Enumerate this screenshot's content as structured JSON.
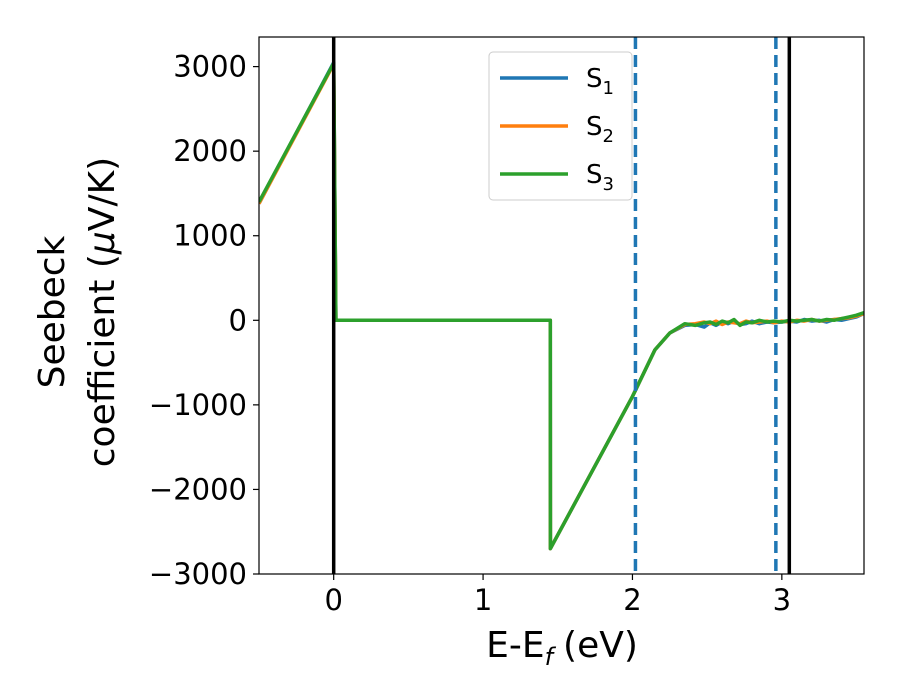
{
  "chart_data": {
    "type": "line",
    "xlabel": "E-E",
    "xlabel_sub": "f",
    "xlabel_unit": "(eV)",
    "ylabel_line1": "Seebeck",
    "ylabel_line2": "coefficient  (",
    "ylabel_mu": "μ",
    "ylabel_unit": "V/K)",
    "xlim": [
      -0.5,
      3.55
    ],
    "ylim": [
      -3000,
      3350
    ],
    "xticks": [
      0,
      1,
      2,
      3
    ],
    "xtick_labels": [
      "0",
      "1",
      "2",
      "3"
    ],
    "yticks": [
      -3000,
      -2000,
      -1000,
      0,
      1000,
      2000,
      3000
    ],
    "ytick_labels": [
      "−3000",
      "−2000",
      "−1000",
      "0",
      "1000",
      "2000",
      "3000"
    ],
    "legend_position": "top-center",
    "series": [
      {
        "name": "S",
        "sub": "1",
        "color": "#1f77b4",
        "x": [
          -0.5,
          0.0,
          0.015,
          1.45,
          1.451,
          2.0,
          2.15,
          2.25,
          2.35,
          2.42,
          2.48,
          2.52,
          2.56,
          2.6,
          2.64,
          2.68,
          2.72,
          2.76,
          2.8,
          2.85,
          2.9,
          2.95,
          3.0,
          3.05,
          3.1,
          3.15,
          3.2,
          3.25,
          3.3,
          3.35,
          3.4,
          3.45,
          3.5,
          3.55
        ],
        "y": [
          1380,
          3050,
          0,
          0,
          -2700,
          -900,
          -350,
          -150,
          -60,
          -50,
          -80,
          -30,
          -60,
          -20,
          -40,
          -10,
          -50,
          -40,
          -10,
          -40,
          -20,
          -30,
          -20,
          -10,
          -20,
          10,
          -10,
          0,
          -20,
          10,
          0,
          20,
          40,
          80
        ]
      },
      {
        "name": "S",
        "sub": "2",
        "color": "#ff7f0e",
        "x": [
          -0.5,
          0.0,
          0.015,
          1.45,
          1.451,
          2.0,
          2.15,
          2.25,
          2.35,
          2.42,
          2.48,
          2.52,
          2.56,
          2.6,
          2.64,
          2.68,
          2.72,
          2.76,
          2.8,
          2.85,
          2.9,
          2.95,
          3.0,
          3.05,
          3.1,
          3.15,
          3.2,
          3.25,
          3.3,
          3.35,
          3.4,
          3.45,
          3.5,
          3.55
        ],
        "y": [
          1380,
          3030,
          0,
          0,
          -2700,
          -900,
          -350,
          -150,
          -50,
          -40,
          -20,
          -40,
          -10,
          -50,
          -20,
          -30,
          -40,
          -10,
          -30,
          -20,
          -10,
          -30,
          -10,
          -20,
          0,
          -10,
          10,
          -10,
          0,
          10,
          20,
          30,
          50,
          80
        ]
      },
      {
        "name": "S",
        "sub": "3",
        "color": "#2ca02c",
        "x": [
          -0.5,
          0.0,
          0.015,
          1.45,
          1.451,
          2.0,
          2.15,
          2.25,
          2.35,
          2.42,
          2.48,
          2.52,
          2.56,
          2.6,
          2.64,
          2.68,
          2.72,
          2.76,
          2.8,
          2.85,
          2.9,
          2.95,
          3.0,
          3.05,
          3.1,
          3.15,
          3.2,
          3.25,
          3.3,
          3.35,
          3.4,
          3.45,
          3.5,
          3.55
        ],
        "y": [
          1400,
          3040,
          0,
          0,
          -2700,
          -900,
          -350,
          -150,
          -40,
          -60,
          -30,
          -20,
          -50,
          -10,
          -30,
          10,
          -60,
          -20,
          -30,
          0,
          -20,
          -10,
          -20,
          0,
          -10,
          0,
          10,
          -10,
          10,
          0,
          20,
          40,
          60,
          90
        ]
      }
    ],
    "vlines_solid": [
      0.0,
      3.05
    ],
    "vlines_dashed": [
      2.02,
      2.96
    ],
    "solid_color": "#000000",
    "dashed_color": "#1f77b4"
  }
}
